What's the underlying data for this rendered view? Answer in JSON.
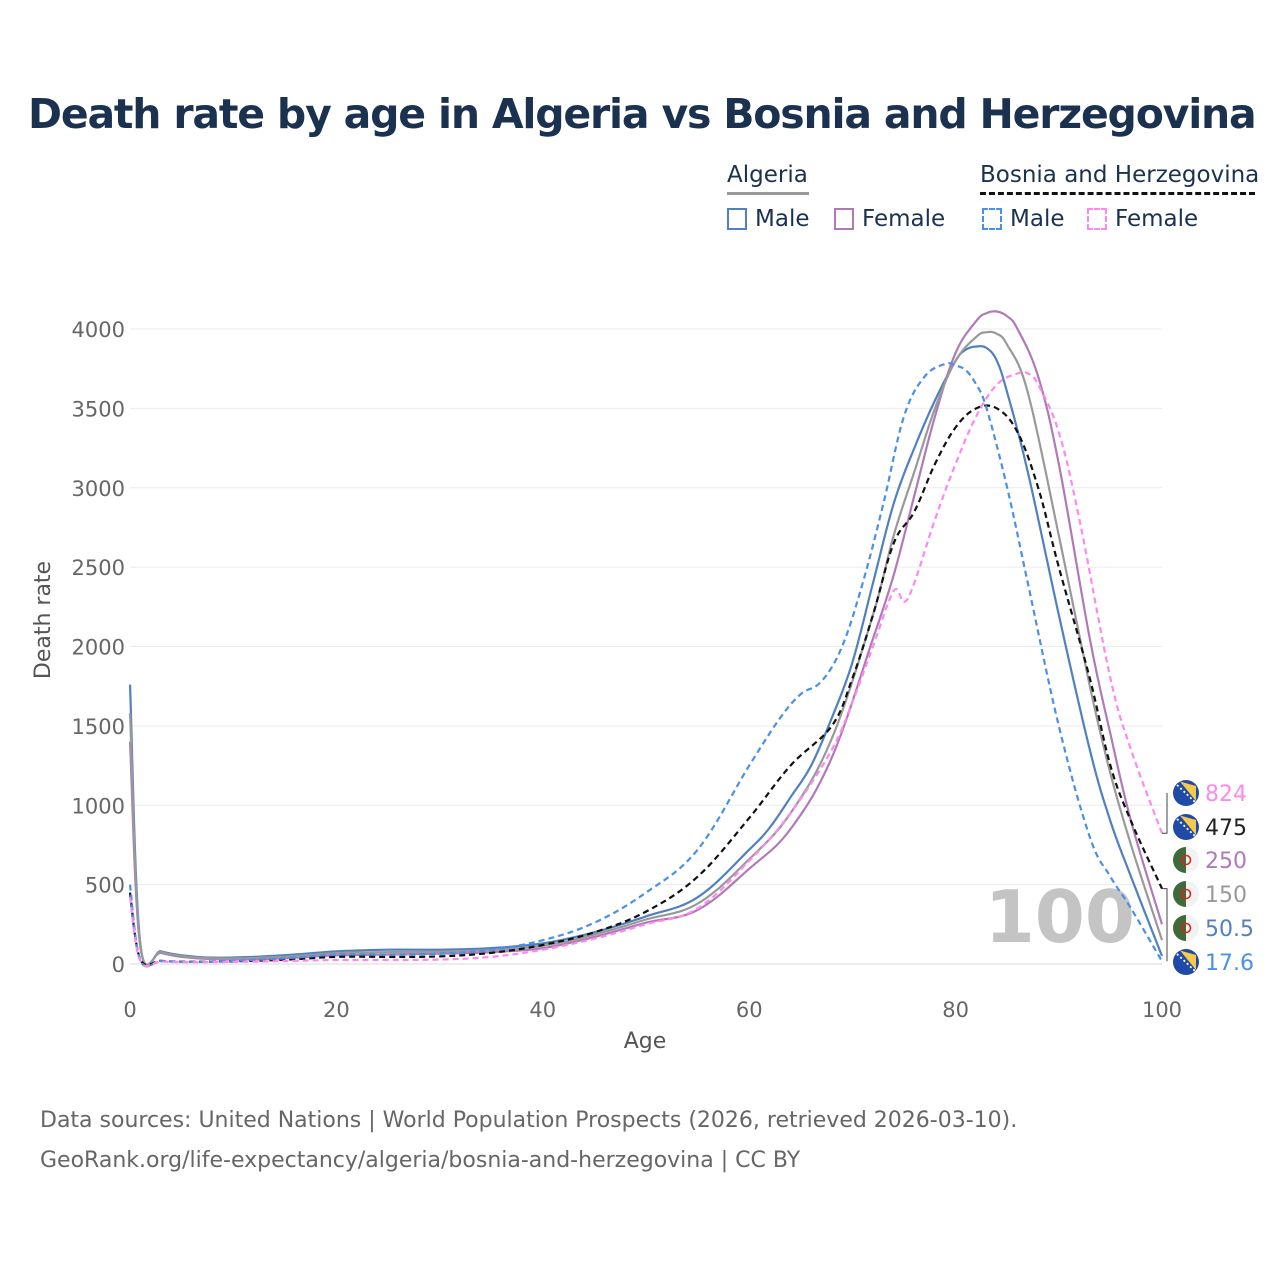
{
  "title": "Death rate by age in Algeria vs Bosnia and Herzegovina",
  "legend": {
    "groups": [
      {
        "label": "Algeria",
        "line_color": "#999999",
        "line_style": "solid",
        "items": [
          {
            "label": "Male",
            "color": "#5080c0",
            "style": "solid"
          },
          {
            "label": "Female",
            "color": "#b07ab8",
            "style": "solid"
          }
        ]
      },
      {
        "label": "Bosnia and Herzegovina",
        "line_color": "#111111",
        "line_style": "dashed",
        "items": [
          {
            "label": "Male",
            "color": "#4a90e8",
            "style": "dashed"
          },
          {
            "label": "Female",
            "color": "#ff88ee",
            "style": "dashed"
          }
        ]
      }
    ]
  },
  "chart_data": {
    "type": "line",
    "title": "Death rate by age in Algeria vs Bosnia and Herzegovina",
    "xlabel": "Age",
    "ylabel": "Death rate",
    "xlim": [
      0,
      100
    ],
    "ylim": [
      0,
      4300
    ],
    "xticks": [
      "0",
      "20",
      "40",
      "60",
      "80",
      "100"
    ],
    "yticks": [
      "0",
      "500",
      "1000",
      "1500",
      "2000",
      "2500",
      "3000",
      "3500",
      "4000"
    ],
    "grid": true,
    "current_age_label": "100",
    "series": [
      {
        "name": "Algeria Male",
        "country": "Algeria",
        "sex": "Male",
        "color": "#5080c0",
        "dash": false,
        "x": [
          0,
          1,
          3,
          5,
          8,
          12,
          16,
          20,
          25,
          30,
          35,
          40,
          45,
          50,
          55,
          60,
          62,
          64,
          66,
          68,
          70,
          72,
          74,
          76,
          78,
          80,
          81,
          82,
          83,
          84,
          85,
          87,
          90,
          93,
          95,
          97,
          100
        ],
        "y": [
          1760,
          130,
          80,
          55,
          40,
          45,
          60,
          80,
          90,
          90,
          100,
          130,
          200,
          300,
          420,
          720,
          860,
          1050,
          1250,
          1550,
          1900,
          2400,
          2900,
          3250,
          3550,
          3800,
          3870,
          3890,
          3880,
          3800,
          3600,
          3100,
          2200,
          1350,
          900,
          550,
          50.5
        ]
      },
      {
        "name": "Algeria Female",
        "country": "Algeria",
        "sex": "Female",
        "color": "#b07ab8",
        "dash": false,
        "x": [
          0,
          1,
          3,
          5,
          8,
          12,
          16,
          20,
          25,
          30,
          35,
          40,
          45,
          50,
          55,
          60,
          64,
          68,
          72,
          74,
          76,
          78,
          80,
          82,
          83,
          84,
          85,
          86,
          88,
          90,
          93,
          95,
          97,
          100
        ],
        "y": [
          1400,
          110,
          70,
          45,
          30,
          30,
          40,
          55,
          60,
          65,
          75,
          100,
          170,
          260,
          340,
          600,
          850,
          1300,
          2050,
          2450,
          2950,
          3450,
          3850,
          4050,
          4100,
          4110,
          4080,
          4000,
          3700,
          3150,
          2050,
          1450,
          900,
          250
        ]
      },
      {
        "name": "Algeria",
        "country": "Algeria",
        "sex": "Total",
        "color": "#999999",
        "dash": false,
        "x": [
          0,
          1,
          3,
          5,
          8,
          12,
          16,
          20,
          25,
          30,
          35,
          40,
          45,
          50,
          55,
          60,
          64,
          68,
          72,
          74,
          76,
          78,
          80,
          82,
          83,
          84,
          85,
          87,
          90,
          93,
          95,
          97,
          100
        ],
        "y": [
          1580,
          120,
          75,
          50,
          35,
          38,
          50,
          68,
          75,
          78,
          88,
          115,
          185,
          280,
          380,
          660,
          950,
          1420,
          2200,
          2700,
          3100,
          3500,
          3800,
          3950,
          3980,
          3970,
          3900,
          3600,
          2700,
          1750,
          1200,
          750,
          150
        ]
      },
      {
        "name": "Bosnia and Herzegovina",
        "country": "Bosnia and Herzegovina",
        "sex": "Total",
        "color": "#111111",
        "dash": true,
        "x": [
          0,
          1,
          3,
          5,
          8,
          12,
          16,
          20,
          25,
          30,
          35,
          40,
          45,
          50,
          55,
          60,
          64,
          68,
          70,
          72,
          74,
          76,
          78,
          80,
          82,
          84,
          86,
          88,
          90,
          93,
          95,
          97,
          100
        ],
        "y": [
          450,
          30,
          20,
          15,
          15,
          20,
          30,
          45,
          45,
          48,
          70,
          120,
          200,
          330,
          550,
          920,
          1250,
          1500,
          1800,
          2200,
          2650,
          2850,
          3150,
          3380,
          3500,
          3500,
          3350,
          3000,
          2500,
          1800,
          1250,
          900,
          475
        ]
      },
      {
        "name": "Bosnia and Herzegovina Male",
        "country": "Bosnia and Herzegovina",
        "sex": "Male",
        "color": "#4a90e8",
        "dash": true,
        "x": [
          0,
          1,
          3,
          5,
          8,
          12,
          16,
          20,
          25,
          30,
          35,
          40,
          45,
          50,
          55,
          60,
          63,
          65,
          67,
          69,
          71,
          73,
          75,
          77,
          79,
          80,
          81,
          82,
          83,
          85,
          87,
          90,
          93,
          95,
          97,
          100
        ],
        "y": [
          500,
          25,
          18,
          14,
          15,
          25,
          40,
          60,
          60,
          65,
          90,
          150,
          260,
          450,
          720,
          1250,
          1550,
          1700,
          1780,
          2000,
          2400,
          2900,
          3450,
          3700,
          3780,
          3770,
          3740,
          3650,
          3500,
          3000,
          2400,
          1500,
          800,
          550,
          350,
          17.6
        ]
      },
      {
        "name": "Bosnia and Herzegovina Female",
        "country": "Bosnia and Herzegovina",
        "sex": "Female",
        "color": "#ff88ee",
        "dash": true,
        "x": [
          0,
          1,
          3,
          5,
          8,
          12,
          16,
          20,
          25,
          30,
          35,
          40,
          45,
          50,
          55,
          60,
          64,
          68,
          70,
          72,
          74,
          75,
          76,
          78,
          80,
          82,
          84,
          86,
          87,
          88,
          90,
          92,
          95,
          97,
          100
        ],
        "y": [
          420,
          20,
          15,
          12,
          12,
          15,
          20,
          25,
          25,
          28,
          45,
          90,
          160,
          250,
          350,
          650,
          950,
          1350,
          1650,
          2000,
          2350,
          2280,
          2400,
          2800,
          3150,
          3450,
          3650,
          3720,
          3720,
          3650,
          3350,
          2800,
          1800,
          1350,
          824
        ]
      }
    ],
    "end_labels": [
      {
        "value": "824",
        "country": "Bosnia and Herzegovina",
        "color": "#ff88ee"
      },
      {
        "value": "475",
        "country": "Bosnia and Herzegovina",
        "color": "#222222"
      },
      {
        "value": "250",
        "country": "Algeria",
        "color": "#b07ab8"
      },
      {
        "value": "150",
        "country": "Algeria",
        "color": "#999999"
      },
      {
        "value": "50.5",
        "country": "Algeria",
        "color": "#5080c0"
      },
      {
        "value": "17.6",
        "country": "Bosnia and Herzegovina",
        "color": "#4a90e8"
      }
    ]
  },
  "source": {
    "line1": "Data sources: United Nations | World Population Prospects (2026, retrieved 2026-03-10).",
    "line2": "GeoRank.org/life-expectancy/algeria/bosnia-and-herzegovina | CC BY"
  }
}
